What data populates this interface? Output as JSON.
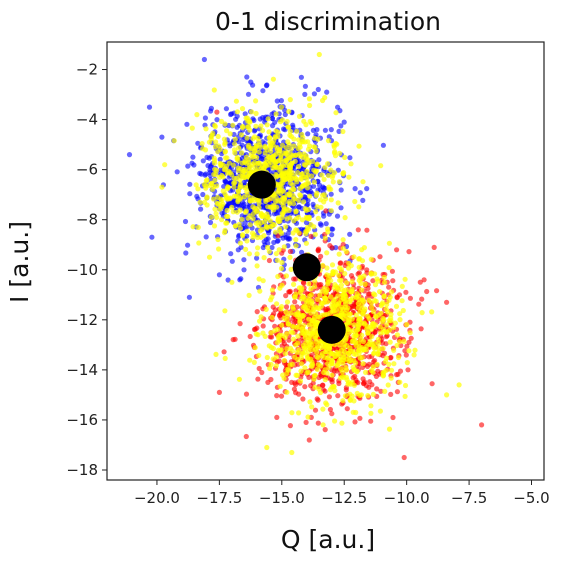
{
  "chart_data": {
    "type": "scatter",
    "title": "0-1 discrimination",
    "xlabel": "Q [a.u.]",
    "ylabel": "I [a.u.]",
    "xlim": [
      -22,
      -4.5
    ],
    "ylim": [
      -18.4,
      -0.9
    ],
    "xticks": [
      -20.0,
      -17.5,
      -15.0,
      -12.5,
      -10.0,
      -7.5,
      -5.0
    ],
    "xtick_labels": [
      "−20.0",
      "−17.5",
      "−15.0",
      "−12.5",
      "−10.0",
      "−7.5",
      "−5.0"
    ],
    "yticks": [
      -2,
      -4,
      -6,
      -8,
      -10,
      -12,
      -14,
      -16,
      -18
    ],
    "ytick_labels": [
      "−2",
      "−4",
      "−6",
      "−8",
      "−10",
      "−12",
      "−14",
      "−16",
      "−18"
    ],
    "grid": false,
    "series": [
      {
        "color": "#0000ff",
        "alpha": 0.6,
        "n_points": 900,
        "center": [
          -15.6,
          -6.4
        ],
        "std": [
          1.35,
          1.4
        ],
        "sample_points": [
          [
            -21.1,
            -5.4
          ],
          [
            -20.3,
            -3.5
          ],
          [
            -18.1,
            -1.6
          ],
          [
            -16.4,
            -2.3
          ],
          [
            -13.2,
            -2.9
          ],
          [
            -12.5,
            -4.1
          ],
          [
            -20.2,
            -8.7
          ],
          [
            -18.7,
            -11.1
          ],
          [
            -14.9,
            -9.8
          ],
          [
            -13.0,
            -8.6
          ],
          [
            -19.8,
            -4.7
          ],
          [
            -17.5,
            -10.2
          ]
        ]
      },
      {
        "color": "#ff0000",
        "alpha": 0.6,
        "n_points": 900,
        "center": [
          -12.9,
          -12.4
        ],
        "std": [
          1.35,
          1.45
        ],
        "sample_points": [
          [
            -7.0,
            -16.2
          ],
          [
            -10.1,
            -17.5
          ],
          [
            -8.4,
            -11.3
          ],
          [
            -9.3,
            -10.4
          ],
          [
            -16.1,
            -13.1
          ],
          [
            -15.2,
            -15.9
          ],
          [
            -17.5,
            -14.9
          ],
          [
            -13.9,
            -16.8
          ],
          [
            -11.6,
            -10.0
          ],
          [
            -13.5,
            -10.6
          ],
          [
            -17.6,
            -3.7
          ],
          [
            -15.5,
            -7.2
          ]
        ]
      },
      {
        "color": "#ffff00",
        "alpha": 0.7,
        "n_points": 1500,
        "centers": [
          [
            -15.5,
            -6.4
          ],
          [
            -12.9,
            -12.4
          ]
        ],
        "std": [
          1.3,
          1.35
        ],
        "sample_points": [
          [
            -8.4,
            -15.0
          ],
          [
            -9.7,
            -13.4
          ],
          [
            -7.9,
            -14.6
          ],
          [
            -13.5,
            -1.4
          ],
          [
            -18.4,
            -3.8
          ],
          [
            -19.8,
            -6.7
          ],
          [
            -15.6,
            -17.1
          ],
          [
            -14.6,
            -17.3
          ],
          [
            -10.8,
            -12.2
          ],
          [
            -11.8,
            -9.2
          ],
          [
            -17.0,
            -10.5
          ],
          [
            -16.1,
            -13.7
          ]
        ]
      }
    ],
    "centroids": [
      {
        "x": -15.8,
        "y": -6.6,
        "color": "#000000"
      },
      {
        "x": -14.0,
        "y": -9.9,
        "color": "#000000"
      },
      {
        "x": -13.0,
        "y": -12.4,
        "color": "#000000"
      }
    ]
  }
}
